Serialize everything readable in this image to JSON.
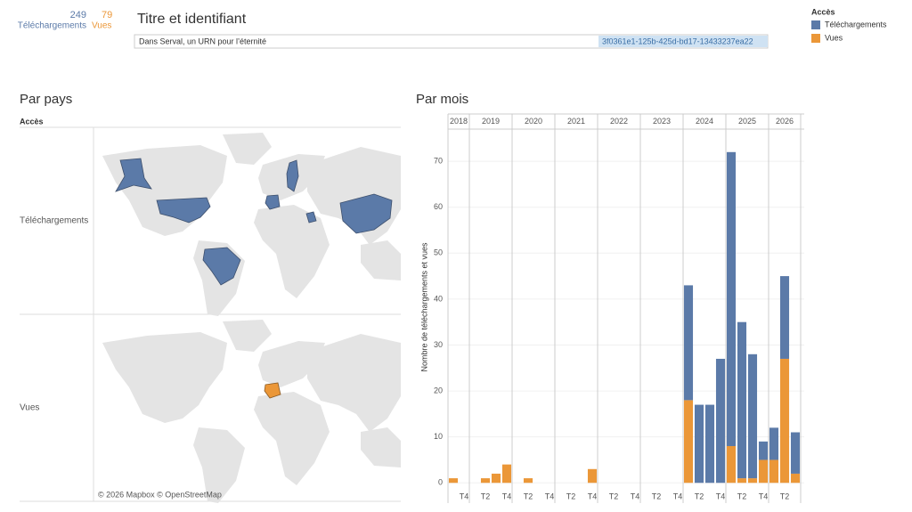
{
  "header": {
    "stats": [
      {
        "value": 249,
        "label": "Téléchargements"
      },
      {
        "value": 79,
        "label": "Vues"
      }
    ],
    "title": "Titre et identifiant",
    "row": [
      "Dans Serval, un URN pour l’éternité",
      "3f0361e1-125b-425d-bd17-13433237ea22"
    ]
  },
  "map": {
    "title": "Par pays",
    "column_header": "Accès",
    "rows": [
      "Téléchargements",
      "Vues"
    ],
    "attribution": "© 2026 Mapbox © OpenStreetMap"
  },
  "chart_data": {
    "type": "bar",
    "stacked": true,
    "title": "Par mois",
    "legend_title": "Accès",
    "y_label": "Nombre de téléchargements et vues",
    "groups": [
      {
        "label": "2018",
        "categories": [
          null,
          "T4"
        ]
      },
      {
        "label": "2019",
        "categories": [
          null,
          "T2",
          null,
          "T4"
        ]
      },
      {
        "label": "2020",
        "categories": [
          null,
          "T2",
          null,
          "T4"
        ]
      },
      {
        "label": "2021",
        "categories": [
          null,
          "T2",
          null,
          "T4"
        ]
      },
      {
        "label": "2022",
        "categories": [
          null,
          "T2",
          null,
          "T4"
        ]
      },
      {
        "label": "2023",
        "categories": [
          null,
          "T2",
          null,
          "T4"
        ]
      },
      {
        "label": "2024",
        "categories": [
          null,
          "T2",
          null,
          "T4"
        ]
      },
      {
        "label": "2025",
        "categories": [
          null,
          "T2",
          null,
          "T4"
        ]
      },
      {
        "label": "2026",
        "categories": [
          null,
          "T2",
          null
        ]
      }
    ],
    "series": [
      {
        "name": "Téléchargements",
        "color": "#5b7aa8",
        "values": [
          0,
          0,
          0,
          0,
          0,
          0,
          0,
          0,
          0,
          0,
          0,
          0,
          0,
          0,
          0,
          0,
          0,
          0,
          0,
          0,
          0,
          0,
          25,
          17,
          17,
          27,
          64,
          34,
          27,
          4,
          7,
          18,
          9
        ]
      },
      {
        "name": "Vues",
        "color": "#eb9738",
        "values": [
          1,
          0,
          0,
          1,
          2,
          4,
          0,
          1,
          0,
          0,
          0,
          0,
          0,
          3,
          0,
          0,
          0,
          0,
          0,
          0,
          0,
          0,
          18,
          0,
          0,
          0,
          8,
          1,
          1,
          5,
          5,
          27,
          2
        ]
      }
    ],
    "ylim": [
      -1.5,
      77
    ],
    "yticks": [
      0,
      10,
      20,
      30,
      40,
      50,
      60,
      70
    ],
    "grid": true
  }
}
